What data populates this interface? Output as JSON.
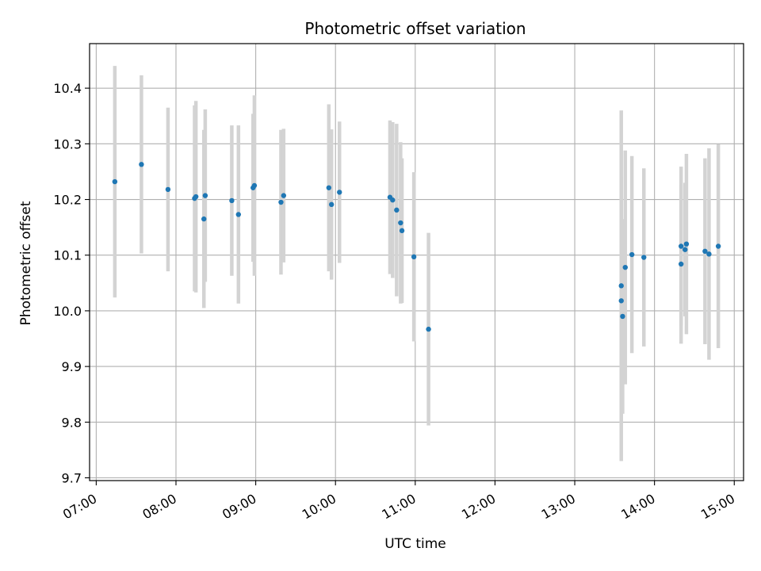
{
  "chart_data": {
    "type": "scatter",
    "title": "Photometric offset variation",
    "xlabel": "UTC time",
    "ylabel": "Photometric offset",
    "x_unit": "HH:MM UTC",
    "xlim": [
      "06:55",
      "15:07"
    ],
    "ylim": [
      9.695,
      10.48
    ],
    "x_ticks": [
      "07:00",
      "08:00",
      "09:00",
      "10:00",
      "11:00",
      "12:00",
      "13:00",
      "14:00",
      "15:00"
    ],
    "y_ticks": [
      "9.7",
      "9.8",
      "9.9",
      "10.0",
      "10.1",
      "10.2",
      "10.3",
      "10.4"
    ],
    "grid": true,
    "point_color": "#1f77b4",
    "errorbar_color": "#d3d3d3",
    "points": [
      {
        "x": "07:14",
        "y": 10.232,
        "yerr": 0.208
      },
      {
        "x": "07:34",
        "y": 10.263,
        "yerr": 0.16
      },
      {
        "x": "07:54",
        "y": 10.218,
        "yerr": 0.147
      },
      {
        "x": "08:14",
        "y": 10.202,
        "yerr": 0.167
      },
      {
        "x": "08:15",
        "y": 10.205,
        "yerr": 0.172
      },
      {
        "x": "08:21",
        "y": 10.165,
        "yerr": 0.16
      },
      {
        "x": "08:22",
        "y": 10.207,
        "yerr": 0.155
      },
      {
        "x": "08:42",
        "y": 10.198,
        "yerr": 0.135
      },
      {
        "x": "08:47",
        "y": 10.173,
        "yerr": 0.16
      },
      {
        "x": "08:58",
        "y": 10.221,
        "yerr": 0.133
      },
      {
        "x": "08:59",
        "y": 10.225,
        "yerr": 0.162
      },
      {
        "x": "09:19",
        "y": 10.195,
        "yerr": 0.13
      },
      {
        "x": "09:21",
        "y": 10.207,
        "yerr": 0.12
      },
      {
        "x": "09:55",
        "y": 10.221,
        "yerr": 0.15
      },
      {
        "x": "09:57",
        "y": 10.191,
        "yerr": 0.135
      },
      {
        "x": "10:03",
        "y": 10.213,
        "yerr": 0.127
      },
      {
        "x": "10:41",
        "y": 10.204,
        "yerr": 0.138
      },
      {
        "x": "10:43",
        "y": 10.199,
        "yerr": 0.14
      },
      {
        "x": "10:46",
        "y": 10.181,
        "yerr": 0.155
      },
      {
        "x": "10:49",
        "y": 10.158,
        "yerr": 0.145
      },
      {
        "x": "10:50",
        "y": 10.144,
        "yerr": 0.13
      },
      {
        "x": "10:59",
        "y": 10.097,
        "yerr": 0.152
      },
      {
        "x": "11:10",
        "y": 9.967,
        "yerr": 0.173
      },
      {
        "x": "13:35",
        "y": 10.045,
        "yerr": 0.315
      },
      {
        "x": "13:35",
        "y": 10.018,
        "yerr": 0.222
      },
      {
        "x": "13:36",
        "y": 9.99,
        "yerr": 0.175
      },
      {
        "x": "13:38",
        "y": 10.078,
        "yerr": 0.21
      },
      {
        "x": "13:43",
        "y": 10.101,
        "yerr": 0.177
      },
      {
        "x": "13:52",
        "y": 10.096,
        "yerr": 0.16
      },
      {
        "x": "14:20",
        "y": 10.084,
        "yerr": 0.143
      },
      {
        "x": "14:20",
        "y": 10.116,
        "yerr": 0.143
      },
      {
        "x": "14:23",
        "y": 10.11,
        "yerr": 0.12
      },
      {
        "x": "14:24",
        "y": 10.12,
        "yerr": 0.162
      },
      {
        "x": "14:38",
        "y": 10.107,
        "yerr": 0.167
      },
      {
        "x": "14:41",
        "y": 10.102,
        "yerr": 0.19
      },
      {
        "x": "14:48",
        "y": 10.116,
        "yerr": 0.183
      }
    ]
  }
}
